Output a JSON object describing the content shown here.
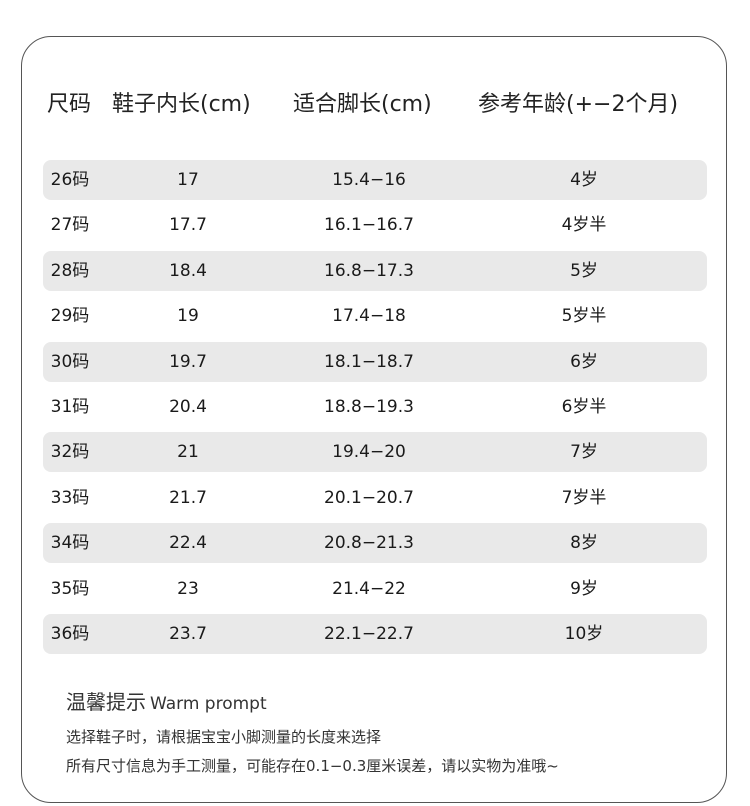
{
  "headers": [
    "尺码",
    "鞋子内长(cm)",
    "适合脚长(cm)",
    "参考年龄(+−2个月)"
  ],
  "rows": [
    [
      "26码",
      "17",
      "15.4−16",
      "4岁"
    ],
    [
      "27码",
      "17.7",
      "16.1−16.7",
      "4岁半"
    ],
    [
      "28码",
      "18.4",
      "16.8−17.3",
      "5岁"
    ],
    [
      "29码",
      "19",
      "17.4−18",
      "5岁半"
    ],
    [
      "30码",
      "19.7",
      "18.1−18.7",
      "6岁"
    ],
    [
      "31码",
      "20.4",
      "18.8−19.3",
      "6岁半"
    ],
    [
      "32码",
      "21",
      "19.4−20",
      "7岁"
    ],
    [
      "33码",
      "21.7",
      "20.1−20.7",
      "7岁半"
    ],
    [
      "34码",
      "22.4",
      "20.8−21.3",
      "8岁"
    ],
    [
      "35码",
      "23",
      "21.4−22",
      "9岁"
    ],
    [
      "36码",
      "23.7",
      "22.1−22.7",
      "10岁"
    ]
  ],
  "tips": {
    "title": "温馨提示",
    "title_en": "Warm prompt",
    "line1": "选择鞋子时，请根据宝宝小脚测量的长度来选择",
    "line2": "所有尺寸信息为手工测量，可能存在0.1−0.3厘米误差，请以实物为准哦~"
  },
  "colors": {
    "row_shade": "#e9e9e9",
    "border": "#555555"
  }
}
